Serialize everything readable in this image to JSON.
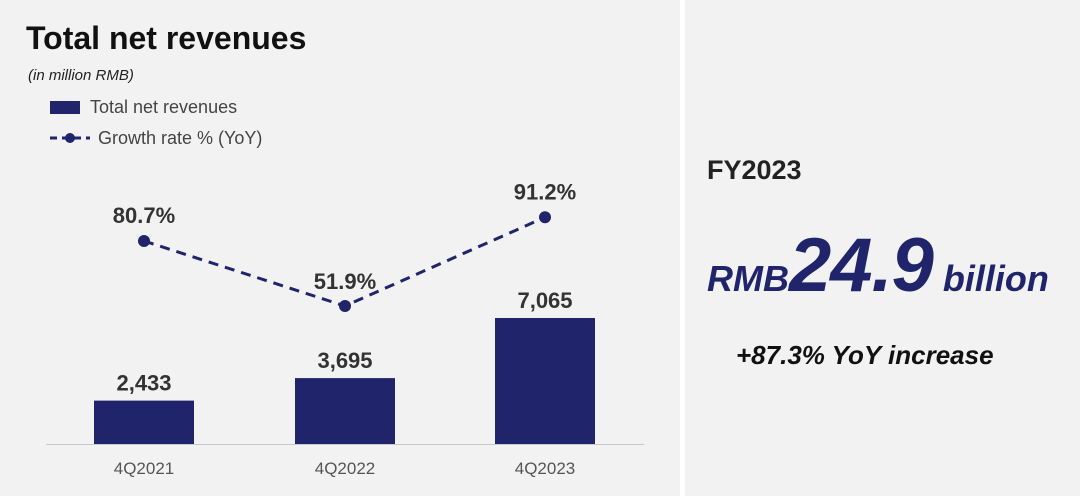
{
  "title": "Total net revenues",
  "subtitle": "(in million RMB)",
  "legend": {
    "bar_label": "Total net revenues",
    "line_label": "Growth rate % (YoY)"
  },
  "summary": {
    "period": "FY2023",
    "currency": "RMB",
    "value": "24.9",
    "unit": "billion",
    "yoy": "+87.3% YoY increase"
  },
  "colors": {
    "bar": "#1f246b",
    "line": "#1f246b",
    "highlight_text": "#1f246b"
  },
  "chart_data": {
    "type": "bar",
    "categories": [
      "4Q2021",
      "4Q2022",
      "4Q2023"
    ],
    "series": [
      {
        "name": "Total net revenues",
        "type": "bar",
        "values": [
          2433,
          3695,
          7065
        ],
        "labels": [
          "2,433",
          "3,695",
          "7,065"
        ]
      },
      {
        "name": "Growth rate % (YoY)",
        "type": "line",
        "style": "dashed",
        "values": [
          80.7,
          51.9,
          91.2
        ],
        "labels": [
          "80.7%",
          "51.9%",
          "91.2%"
        ]
      }
    ],
    "title": "Total net revenues",
    "ylabel": "",
    "xlabel": ""
  }
}
